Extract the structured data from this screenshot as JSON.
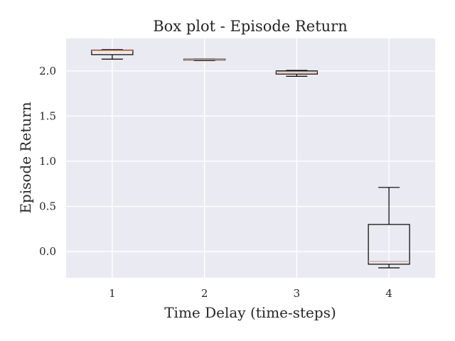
{
  "chart_data": {
    "type": "boxplot",
    "title": "Box plot - Episode Return",
    "xlabel": "Time Delay (time-steps)",
    "ylabel": "Episode Return",
    "categories": [
      "1",
      "2",
      "3",
      "4"
    ],
    "xticks": [
      "1",
      "2",
      "3",
      "4"
    ],
    "yticks": [
      "0.0",
      "0.5",
      "1.0",
      "1.5",
      "2.0"
    ],
    "ylim": [
      -0.29,
      2.36
    ],
    "grid": true,
    "background_color": "#eaeaf2",
    "grid_color": "#ffffff",
    "median_color": "#f0a080",
    "boxes": [
      {
        "category": "1",
        "whislo": 2.13,
        "q1": 2.18,
        "med": 2.225,
        "q3": 2.23,
        "whishi": 2.235
      },
      {
        "category": "2",
        "whislo": 2.115,
        "q1": 2.12,
        "med": 2.125,
        "q3": 2.13,
        "whishi": 2.13
      },
      {
        "category": "3",
        "whislo": 1.94,
        "q1": 1.965,
        "med": 1.99,
        "q3": 2.0,
        "whishi": 2.005
      },
      {
        "category": "4",
        "whislo": -0.18,
        "q1": -0.14,
        "med": -0.11,
        "q3": 0.3,
        "whishi": 0.71
      }
    ]
  }
}
